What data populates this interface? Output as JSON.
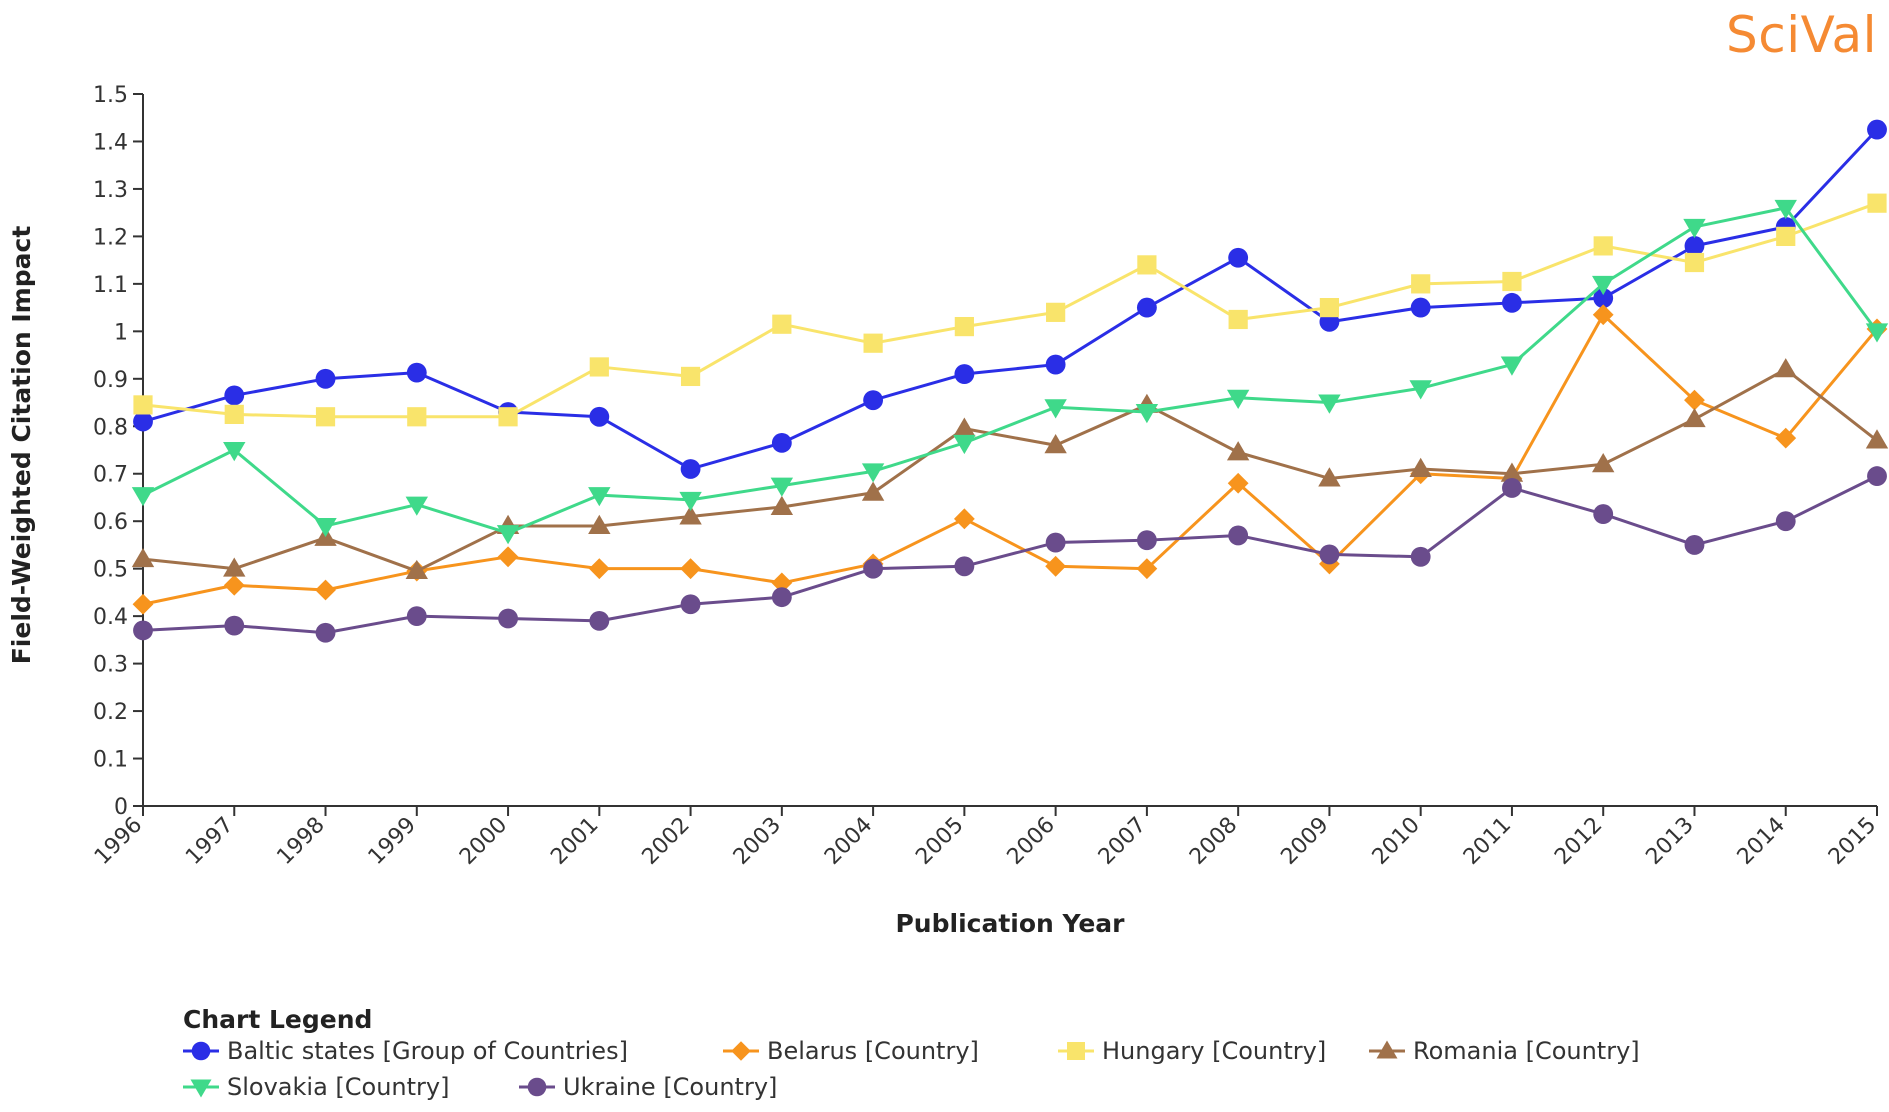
{
  "brand": {
    "logo_text": "SciVal",
    "color": "#f58a33"
  },
  "chart_data": {
    "type": "line",
    "title": "",
    "xlabel": "Publication Year",
    "ylabel": "Field-Weighted Citation Impact",
    "x": [
      "1996",
      "1997",
      "1998",
      "1999",
      "2000",
      "2001",
      "2002",
      "2003",
      "2004",
      "2005",
      "2006",
      "2007",
      "2008",
      "2009",
      "2010",
      "2011",
      "2012",
      "2013",
      "2014",
      "2015"
    ],
    "ylim": [
      0,
      1.5
    ],
    "yticks": [
      "0",
      "0.1",
      "0.2",
      "0.3",
      "0.4",
      "0.5",
      "0.6",
      "0.7",
      "0.8",
      "0.9",
      "1",
      "1.1",
      "1.2",
      "1.3",
      "1.4",
      "1.5"
    ],
    "grid": false,
    "legend_title": "Chart Legend",
    "legend_position": "bottom",
    "series": [
      {
        "name": "Baltic states [Group of Countries]",
        "color": "#2a2ee6",
        "marker": "circle",
        "values": [
          0.81,
          0.865,
          0.9,
          0.913,
          0.83,
          0.82,
          0.71,
          0.765,
          0.855,
          0.91,
          0.93,
          1.05,
          1.155,
          1.02,
          1.05,
          1.06,
          1.07,
          1.18,
          1.22,
          1.425
        ]
      },
      {
        "name": "Belarus [Country]",
        "color": "#f7941d",
        "marker": "diamond",
        "values": [
          0.425,
          0.465,
          0.455,
          0.495,
          0.525,
          0.5,
          0.5,
          0.47,
          0.51,
          0.605,
          0.505,
          0.5,
          0.68,
          0.51,
          0.7,
          0.69,
          1.035,
          0.855,
          0.775,
          1.005
        ]
      },
      {
        "name": "Hungary [Country]",
        "color": "#f9e46b",
        "marker": "square",
        "values": [
          0.845,
          0.825,
          0.82,
          0.82,
          0.82,
          0.925,
          0.905,
          1.015,
          0.975,
          1.01,
          1.04,
          1.14,
          1.025,
          1.05,
          1.1,
          1.105,
          1.18,
          1.145,
          1.2,
          1.27
        ]
      },
      {
        "name": "Romania [Country]",
        "color": "#a0714a",
        "marker": "triangle-up",
        "values": [
          0.52,
          0.5,
          0.565,
          0.495,
          0.59,
          0.59,
          0.61,
          0.63,
          0.66,
          0.795,
          0.76,
          0.845,
          0.745,
          0.69,
          0.71,
          0.7,
          0.72,
          0.815,
          0.92,
          0.77
        ]
      },
      {
        "name": "Slovakia [Country]",
        "color": "#3fd98a",
        "marker": "triangle-down",
        "values": [
          0.655,
          0.75,
          0.59,
          0.635,
          0.575,
          0.655,
          0.645,
          0.675,
          0.705,
          0.765,
          0.84,
          0.83,
          0.86,
          0.85,
          0.88,
          0.93,
          1.1,
          1.22,
          1.26,
          1.0
        ]
      },
      {
        "name": "Ukraine [Country]",
        "color": "#6a4c8c",
        "marker": "circle",
        "values": [
          0.37,
          0.38,
          0.365,
          0.4,
          0.395,
          0.39,
          0.425,
          0.44,
          0.5,
          0.505,
          0.555,
          0.56,
          0.57,
          0.53,
          0.525,
          0.67,
          0.615,
          0.55,
          0.6,
          0.695
        ]
      }
    ]
  }
}
